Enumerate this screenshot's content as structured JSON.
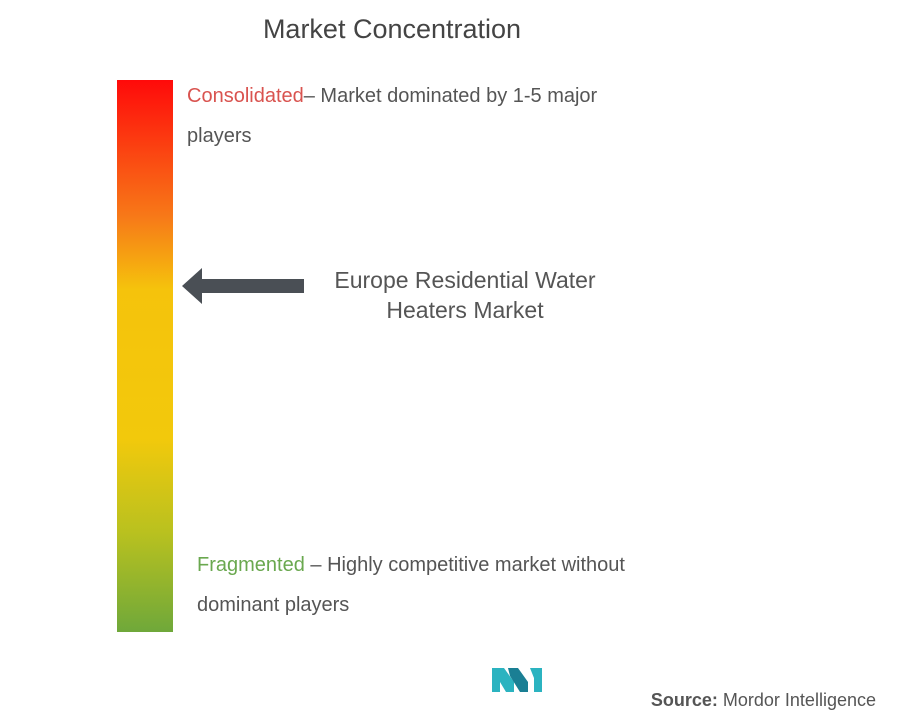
{
  "title": "Market Concentration",
  "consolidated": {
    "label": "Consolidated",
    "description": "– Market dominated by 1-5 major players"
  },
  "market": {
    "label": "Europe Residential Water Heaters Market"
  },
  "fragmented": {
    "label": "Fragmented",
    "description": " – Highly competitive market without dominant players"
  },
  "source": {
    "label": "Source:",
    "name": "Mordor Intelligence"
  }
}
